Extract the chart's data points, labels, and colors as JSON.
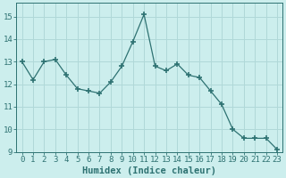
{
  "x": [
    0,
    1,
    2,
    3,
    4,
    5,
    6,
    7,
    8,
    9,
    10,
    11,
    12,
    13,
    14,
    15,
    16,
    17,
    18,
    19,
    20,
    21,
    22,
    23
  ],
  "y": [
    13.0,
    12.2,
    13.0,
    13.1,
    12.4,
    11.8,
    11.7,
    11.6,
    12.1,
    12.8,
    13.9,
    15.1,
    12.8,
    12.6,
    12.9,
    12.4,
    12.3,
    11.7,
    11.1,
    10.0,
    9.6,
    9.6,
    9.6,
    9.1
  ],
  "line_color": "#2e7272",
  "marker": "+",
  "marker_size": 4,
  "background_color": "#cceeed",
  "grid_color": "#b0d8d8",
  "xlabel": "Humidex (Indice chaleur)",
  "xlim": [
    -0.5,
    23.5
  ],
  "ylim": [
    9,
    15.6
  ],
  "yticks": [
    9,
    10,
    11,
    12,
    13,
    14,
    15
  ],
  "xticks": [
    0,
    1,
    2,
    3,
    4,
    5,
    6,
    7,
    8,
    9,
    10,
    11,
    12,
    13,
    14,
    15,
    16,
    17,
    18,
    19,
    20,
    21,
    22,
    23
  ],
  "tick_color": "#2e7272",
  "label_color": "#2e7272",
  "font_size_xlabel": 7.5,
  "font_size_ticks": 6.5
}
